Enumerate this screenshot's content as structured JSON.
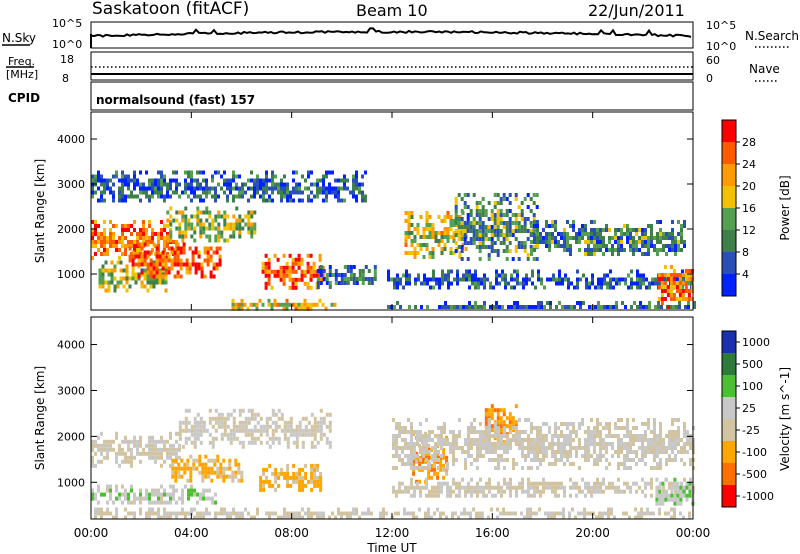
{
  "header": {
    "station": "Saskatoon (fitACF)",
    "beam": "Beam 10",
    "date": "22/Jun/2011"
  },
  "noise_panel": {
    "left_label": "N.Sky",
    "left_ticks": [
      "10^5",
      "10^0"
    ],
    "right_label": "N.Search",
    "right_ticks": [
      "10^5",
      "10^0"
    ]
  },
  "freq_panel": {
    "left_label_1": "Freq.",
    "left_label_2": "[MHz]",
    "left_ticks": [
      "18",
      "8"
    ],
    "right_label": "Nave",
    "right_ticks": [
      "60",
      "0"
    ]
  },
  "cpid": {
    "label": "CPID",
    "text": "normalsound (fast) 157"
  },
  "colors": {
    "power": [
      "#0022ff",
      "#2a50b8",
      "#3f7f4a",
      "#55a050",
      "#f2c200",
      "#ff9a00",
      "#ff5a00",
      "#ff0000"
    ],
    "velocity": [
      "#1a2fb0",
      "#2d7a3a",
      "#4cbf33",
      "#c8c8c8",
      "#d2c4a0",
      "#ffa500",
      "#ff7000",
      "#ff0000"
    ]
  },
  "chart_data": [
    {
      "type": "heatmap",
      "title": "",
      "ylabel": "Slant Range [km]",
      "xlabel": "",
      "x_ticks": [
        "00:00",
        "04:00",
        "08:00",
        "12:00",
        "16:00",
        "20:00",
        "00:00"
      ],
      "y_ticks": [
        "1000",
        "2000",
        "3000",
        "4000"
      ],
      "ylim": [
        200,
        4600
      ],
      "colorbar": {
        "label": "Power [dB]",
        "ticks": [
          "4",
          "8",
          "12",
          "16",
          "20",
          "24",
          "28"
        ],
        "range": [
          0,
          30
        ]
      },
      "echo_bands": [
        {
          "t0": 0.0,
          "t1": 3.4,
          "r0": 1350,
          "r1": 2200,
          "value": 22
        },
        {
          "t0": 0.3,
          "t1": 3.0,
          "r0": 650,
          "r1": 1300,
          "value": 14
        },
        {
          "t0": 1.5,
          "t1": 5.2,
          "r0": 900,
          "r1": 1700,
          "value": 25
        },
        {
          "t0": 3.0,
          "t1": 6.5,
          "r0": 1700,
          "r1": 2500,
          "value": 15
        },
        {
          "t0": 5.6,
          "t1": 9.7,
          "r0": 250,
          "r1": 450,
          "value": 18
        },
        {
          "t0": 6.8,
          "t1": 9.3,
          "r0": 700,
          "r1": 1450,
          "value": 24
        },
        {
          "t0": 9.0,
          "t1": 11.3,
          "r0": 700,
          "r1": 1200,
          "value": 7
        },
        {
          "t0": 0.0,
          "t1": 11.0,
          "r0": 2600,
          "r1": 3300,
          "value": 6
        },
        {
          "t0": 12.5,
          "t1": 15.0,
          "r0": 1400,
          "r1": 2400,
          "value": 16
        },
        {
          "t0": 14.5,
          "t1": 17.8,
          "r0": 1300,
          "r1": 2800,
          "value": 10
        },
        {
          "t0": 17.5,
          "t1": 23.6,
          "r0": 1400,
          "r1": 2200,
          "value": 9
        },
        {
          "t0": 11.8,
          "t1": 24.0,
          "r0": 700,
          "r1": 1100,
          "value": 6
        },
        {
          "t0": 11.8,
          "t1": 24.0,
          "r0": 250,
          "r1": 400,
          "value": 8
        },
        {
          "t0": 22.6,
          "t1": 24.0,
          "r0": 300,
          "r1": 1200,
          "value": 22
        }
      ]
    },
    {
      "type": "heatmap",
      "title": "",
      "ylabel": "Slant Range [km]",
      "xlabel": "Time UT",
      "x_ticks": [
        "00:00",
        "04:00",
        "08:00",
        "12:00",
        "16:00",
        "20:00",
        "00:00"
      ],
      "y_ticks": [
        "1000",
        "2000",
        "3000",
        "4000"
      ],
      "ylim": [
        200,
        4600
      ],
      "colorbar": {
        "label": "Velocity [m s^-1]",
        "ticks": [
          "1000",
          "500",
          "100",
          "25",
          "-25",
          "-100",
          "-500",
          "-1000"
        ],
        "range": [
          -1000,
          1000
        ]
      },
      "echo_bands": [
        {
          "t0": 0.0,
          "t1": 3.5,
          "r0": 1400,
          "r1": 2100,
          "value": 0
        },
        {
          "t0": 0.0,
          "t1": 5.0,
          "r0": 550,
          "r1": 950,
          "value": 150
        },
        {
          "t0": 3.2,
          "t1": 6.0,
          "r0": 1000,
          "r1": 1600,
          "value": -300
        },
        {
          "t0": 3.5,
          "t1": 9.5,
          "r0": 1800,
          "r1": 2600,
          "value": 10
        },
        {
          "t0": 6.7,
          "t1": 9.2,
          "r0": 800,
          "r1": 1400,
          "value": -300
        },
        {
          "t0": 12.8,
          "t1": 14.2,
          "r0": 1000,
          "r1": 2100,
          "value": -400
        },
        {
          "t0": 15.7,
          "t1": 16.9,
          "r0": 1900,
          "r1": 2700,
          "value": -500
        },
        {
          "t0": 12.0,
          "t1": 24.0,
          "r0": 1300,
          "r1": 2400,
          "value": 5
        },
        {
          "t0": 12.0,
          "t1": 24.0,
          "r0": 700,
          "r1": 1100,
          "value": -20
        },
        {
          "t0": 0.0,
          "t1": 24.0,
          "r0": 250,
          "r1": 450,
          "value": -30
        },
        {
          "t0": 22.5,
          "t1": 24.0,
          "r0": 500,
          "r1": 1100,
          "value": 200
        }
      ]
    }
  ]
}
